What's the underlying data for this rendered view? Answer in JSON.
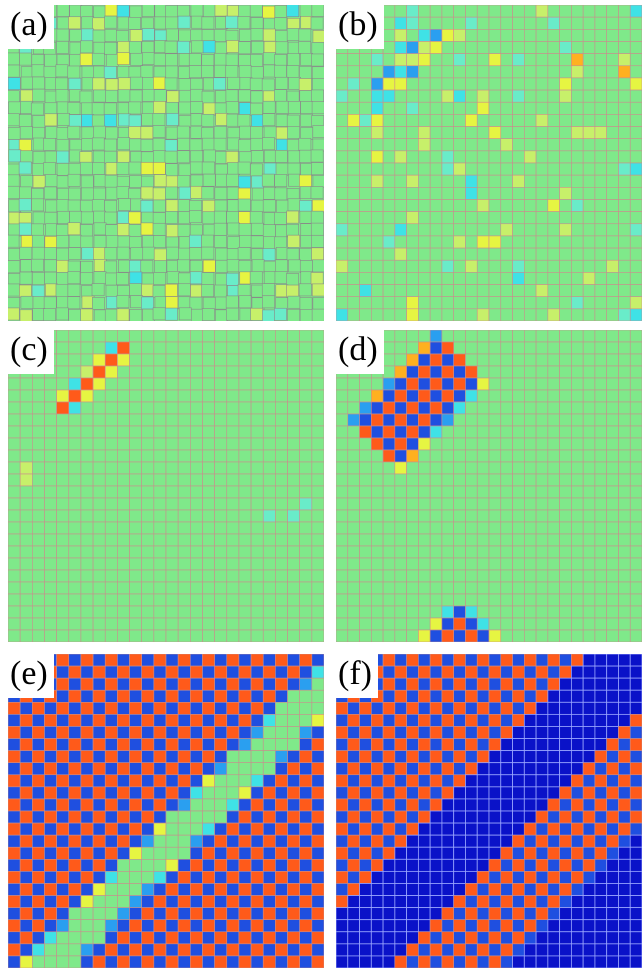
{
  "figure": {
    "panels": [
      {
        "id": "a",
        "label": "(a)",
        "pattern": "noisy-wavy"
      },
      {
        "id": "b",
        "label": "(b)",
        "pattern": "sparse-fluctuations"
      },
      {
        "id": "c",
        "label": "(c)",
        "pattern": "small-domain-nucleation"
      },
      {
        "id": "d",
        "label": "(d)",
        "pattern": "growing-striped-domains"
      },
      {
        "id": "e",
        "label": "(e)",
        "pattern": "diagonal-stripes-with-band"
      },
      {
        "id": "f",
        "label": "(f)",
        "pattern": "diagonal-stripes-dark-band"
      }
    ],
    "colors": {
      "background_green": "#7fe98a",
      "grid_line": "#c98e8e",
      "yellow": "#e6f542",
      "light_yellow": "#c7f06a",
      "cyan": "#3fe2e6",
      "light_cyan": "#69ecc9",
      "orange": "#ff5a1a",
      "blue": "#1f4fe0",
      "dark_blue": "#0a12c8",
      "amber": "#ffb020",
      "sky": "#2a9ff0"
    }
  }
}
